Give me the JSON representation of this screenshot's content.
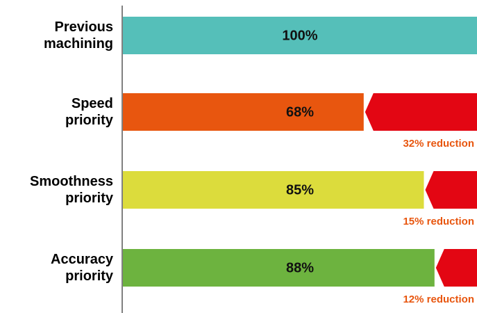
{
  "chart_data": {
    "type": "bar",
    "orientation": "horizontal",
    "categories": [
      "Previous machining",
      "Speed priority",
      "Smoothness priority",
      "Accuracy priority"
    ],
    "values": [
      100,
      68,
      85,
      88
    ],
    "value_labels": [
      "100%",
      "68%",
      "85%",
      "88%"
    ],
    "colors": [
      "#55bfb9",
      "#e8560f",
      "#dcdc3c",
      "#6db33f"
    ],
    "reduction_color": "#e30613",
    "annotations": [
      null,
      "32% reduction",
      "15% reduction",
      "12% reduction"
    ],
    "annotation_color": "#e8560f",
    "xlim": [
      0,
      100
    ]
  }
}
